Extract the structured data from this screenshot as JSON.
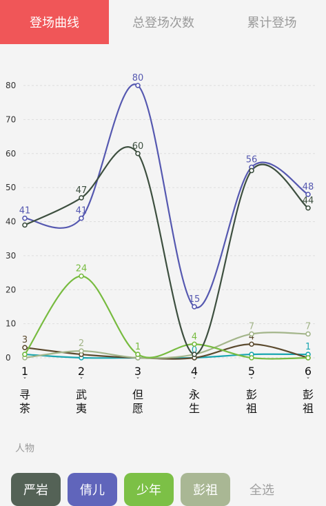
{
  "tabs": [
    {
      "label": "登场曲线",
      "active": true
    },
    {
      "label": "总登场次数",
      "active": false
    },
    {
      "label": "累计登场",
      "active": false
    }
  ],
  "chart_data": {
    "type": "line",
    "y_ticks": [
      "0",
      "10",
      "20",
      "30",
      "40",
      "50",
      "60",
      "70",
      "80"
    ],
    "ylim": [
      0,
      85
    ],
    "grid": true,
    "categories": [
      {
        "num": "1",
        "line1": "寻",
        "line2": "茶"
      },
      {
        "num": "2",
        "line1": "武",
        "line2": "夷"
      },
      {
        "num": "3",
        "line1": "但",
        "line2": "愿"
      },
      {
        "num": "4",
        "line1": "永",
        "line2": "生"
      },
      {
        "num": "5",
        "line1": "彭",
        "line2": "祖"
      },
      {
        "num": "6",
        "line1": "彭",
        "line2": "祖"
      }
    ],
    "series": [
      {
        "name": "严岩",
        "color": "#3d4f3f",
        "values": [
          39,
          47,
          60,
          1,
          55,
          44
        ],
        "labels": [
          "",
          "47",
          "60",
          "",
          "",
          "44"
        ]
      },
      {
        "name": "倩儿",
        "color": "#5558b0",
        "values": [
          41,
          41,
          80,
          15,
          56,
          48
        ],
        "labels": [
          "41",
          "41",
          "80",
          "15",
          "56",
          "48"
        ]
      },
      {
        "name": "少年",
        "color": "#77bb3f",
        "values": [
          1,
          24,
          1,
          4,
          0,
          0
        ],
        "labels": [
          "",
          "24",
          "1",
          "4",
          "",
          ""
        ]
      },
      {
        "name": "彭祖",
        "color": "#a3b58a",
        "values": [
          0,
          2,
          0,
          1,
          7,
          7
        ],
        "labels": [
          "",
          "2",
          "",
          "",
          "7",
          "7"
        ]
      },
      {
        "name": "",
        "color": "#5b4a2e",
        "values": [
          3,
          1,
          0,
          0,
          4,
          0
        ],
        "labels": [
          "3",
          "",
          "",
          "",
          "4",
          ""
        ]
      },
      {
        "name": "",
        "color": "#1aa6b0",
        "values": [
          1,
          0,
          0,
          0,
          1,
          1
        ],
        "labels": [
          "",
          "",
          "",
          "0",
          "",
          "1"
        ]
      }
    ]
  },
  "section_label": "人物",
  "filters": [
    {
      "label": "严岩",
      "color": "#546256"
    },
    {
      "label": "倩儿",
      "color": "#6065bb"
    },
    {
      "label": "少年",
      "color": "#7cc046"
    },
    {
      "label": "彭祖",
      "color": "#a9b794"
    },
    {
      "label": "全选",
      "color": ""
    }
  ]
}
